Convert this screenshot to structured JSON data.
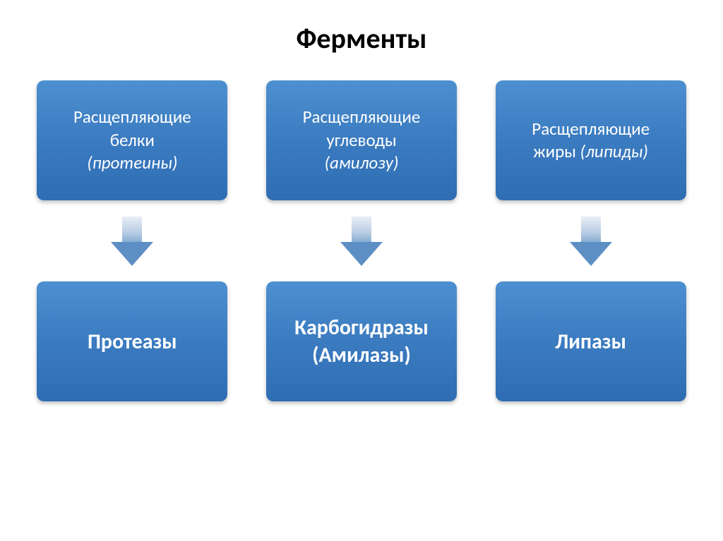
{
  "title": "Ферменты",
  "columns": [
    {
      "top": {
        "line1": "Расщепляющие",
        "line2": "белки",
        "italic": "(протеины)"
      },
      "bottom": {
        "bold": "Протеазы",
        "sub": ""
      }
    },
    {
      "top": {
        "line1": "Расщепляющие",
        "line2": "углеводы",
        "italic": "(амилозу)"
      },
      "bottom": {
        "bold": "Карбогидразы",
        "sub": "(Амилазы)"
      }
    },
    {
      "top": {
        "line1": "Расщепляющие",
        "line2": "жиры",
        "italic": "(липиды)"
      },
      "bottom": {
        "bold": "Липазы",
        "sub": ""
      }
    }
  ],
  "style": {
    "box_gradient_top": "#4d90d1",
    "box_gradient_mid": "#3b7bc0",
    "box_gradient_bottom": "#2f6db3",
    "text_color": "#ffffff",
    "title_color": "#000000",
    "title_fontsize": 40,
    "box_fontsize": 25,
    "bold_fontsize": 30,
    "border_radius": 10,
    "arrow_gradient_top": "#e8eef5",
    "arrow_gradient_bottom": "#5d8fc5",
    "background": "#ffffff"
  }
}
